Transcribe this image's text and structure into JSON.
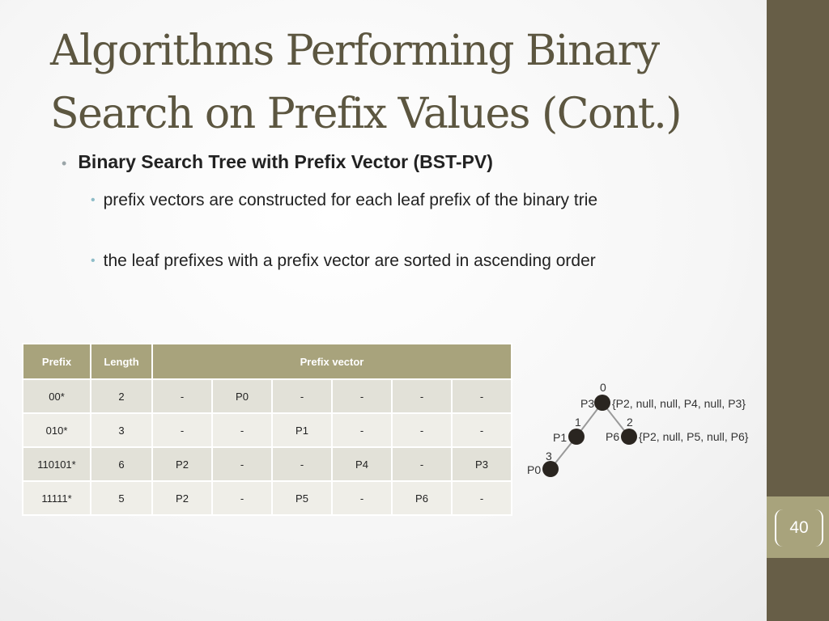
{
  "slide": {
    "title": "Algorithms Performing Binary Search on Prefix Values (Cont.)",
    "bullet_main": "Binary Search Tree with Prefix Vector (BST-PV)",
    "sub_bullets": [
      "prefix vectors are constructed for each leaf prefix of the binary trie",
      "the leaf prefixes with a prefix vector are sorted in ascending order"
    ],
    "page_number": "40"
  },
  "table": {
    "headers": {
      "prefix": "Prefix",
      "length": "Length",
      "vector": "Prefix vector"
    },
    "rows": [
      {
        "prefix": "00*",
        "length": "2",
        "vector": [
          "-",
          "P0",
          "-",
          "-",
          "-",
          "-"
        ]
      },
      {
        "prefix": "010*",
        "length": "3",
        "vector": [
          "-",
          "-",
          "P1",
          "-",
          "-",
          "-"
        ]
      },
      {
        "prefix": "110101*",
        "length": "6",
        "vector": [
          "P2",
          "-",
          "-",
          "P4",
          "-",
          "P3"
        ]
      },
      {
        "prefix": "11111*",
        "length": "5",
        "vector": [
          "P2",
          "-",
          "P5",
          "-",
          "P6",
          "-"
        ]
      }
    ]
  },
  "tree": {
    "nodes": [
      {
        "id": "P3",
        "index": "0",
        "vector": "{P2, null, null, P4, null, P3}"
      },
      {
        "id": "P1",
        "index": "1",
        "vector": ""
      },
      {
        "id": "P6",
        "index": "2",
        "vector": "{P2, null, P5, null, P6}"
      },
      {
        "id": "P0",
        "index": "3",
        "vector": ""
      }
    ]
  }
}
